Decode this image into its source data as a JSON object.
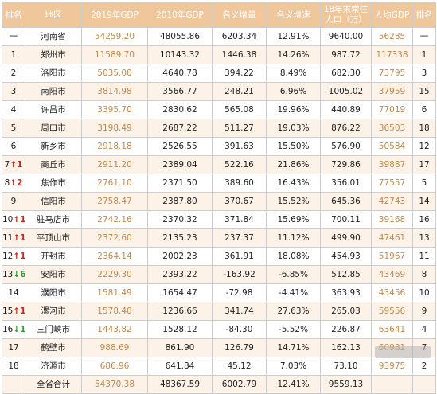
{
  "headers": {
    "rank": "排名",
    "region": "地区",
    "gdp2019": "2019年GDP",
    "gdp2018": "2018年GDP",
    "nominal_increase": "名义增量",
    "nominal_rate": "名义增速",
    "population": "18年末常住人口（万）",
    "per_capita": "人均GDP",
    "per_capita_rank": "排名"
  },
  "rows": [
    {
      "rank": "一",
      "change": "",
      "dir": "",
      "city": "河南省",
      "gdp2019": "54259.20",
      "gdp2018": "48055.86",
      "increase": "6203.34",
      "rate": "12.91%",
      "population": "9640.00",
      "per_capita": "56285",
      "pc_rank": "一"
    },
    {
      "rank": "1",
      "change": "",
      "dir": "",
      "city": "郑州市",
      "gdp2019": "11589.70",
      "gdp2018": "10143.32",
      "increase": "1446.38",
      "rate": "14.26%",
      "population": "987.72",
      "per_capita": "117338",
      "pc_rank": "1"
    },
    {
      "rank": "2",
      "change": "",
      "dir": "",
      "city": "洛阳市",
      "gdp2019": "5035.00",
      "gdp2018": "4640.78",
      "increase": "394.22",
      "rate": "8.49%",
      "population": "682.30",
      "per_capita": "73795",
      "pc_rank": "3"
    },
    {
      "rank": "3",
      "change": "",
      "dir": "",
      "city": "南阳市",
      "gdp2019": "3814.98",
      "gdp2018": "3566.77",
      "increase": "248.21",
      "rate": "6.96%",
      "population": "1005.02",
      "per_capita": "37959",
      "pc_rank": "15"
    },
    {
      "rank": "4",
      "change": "",
      "dir": "",
      "city": "许昌市",
      "gdp2019": "3395.70",
      "gdp2018": "2830.62",
      "increase": "565.08",
      "rate": "19.96%",
      "population": "440.89",
      "per_capita": "77019",
      "pc_rank": "6"
    },
    {
      "rank": "5",
      "change": "",
      "dir": "",
      "city": "周口市",
      "gdp2019": "3198.49",
      "gdp2018": "2687.22",
      "increase": "511.27",
      "rate": "19.03%",
      "population": "876.22",
      "per_capita": "36503",
      "pc_rank": "18"
    },
    {
      "rank": "6",
      "change": "",
      "dir": "",
      "city": "新乡市",
      "gdp2019": "2918.18",
      "gdp2018": "2526.55",
      "increase": "391.63",
      "rate": "15.50%",
      "population": "576.90",
      "per_capita": "50584",
      "pc_rank": "12"
    },
    {
      "rank": "7",
      "change": "1",
      "dir": "up",
      "city": "商丘市",
      "gdp2019": "2911.20",
      "gdp2018": "2389.04",
      "increase": "522.16",
      "rate": "21.86%",
      "population": "729.86",
      "per_capita": "39887",
      "pc_rank": "17"
    },
    {
      "rank": "8",
      "change": "2",
      "dir": "up",
      "city": "焦作市",
      "gdp2019": "2761.10",
      "gdp2018": "2371.50",
      "increase": "389.60",
      "rate": "16.43%",
      "population": "356.01",
      "per_capita": "77557",
      "pc_rank": "5"
    },
    {
      "rank": "9",
      "change": "",
      "dir": "",
      "city": "信阳市",
      "gdp2019": "2758.47",
      "gdp2018": "2387.80",
      "increase": "370.67",
      "rate": "15.52%",
      "population": "645.36",
      "per_capita": "42743",
      "pc_rank": "14"
    },
    {
      "rank": "10",
      "change": "1",
      "dir": "up",
      "city": "驻马店市",
      "gdp2019": "2742.16",
      "gdp2018": "2370.32",
      "increase": "371.84",
      "rate": "15.69%",
      "population": "700.11",
      "per_capita": "39168",
      "pc_rank": "16"
    },
    {
      "rank": "11",
      "change": "1",
      "dir": "up",
      "city": "平顶山市",
      "gdp2019": "2372.60",
      "gdp2018": "2135.23",
      "increase": "237.37",
      "rate": "11.12%",
      "population": "499.90",
      "per_capita": "47461",
      "pc_rank": "13"
    },
    {
      "rank": "12",
      "change": "1",
      "dir": "up",
      "city": "开封市",
      "gdp2019": "2364.14",
      "gdp2018": "2002.23",
      "increase": "361.91",
      "rate": "18.08%",
      "population": "454.93",
      "per_capita": "51967",
      "pc_rank": "11"
    },
    {
      "rank": "13",
      "change": "6",
      "dir": "down",
      "city": "安阳市",
      "gdp2019": "2229.30",
      "gdp2018": "2393.22",
      "increase": "-163.92",
      "rate": "-6.85%",
      "population": "512.85",
      "per_capita": "43469",
      "pc_rank": "8"
    },
    {
      "rank": "14",
      "change": "",
      "dir": "",
      "city": "濮阳市",
      "gdp2019": "1581.49",
      "gdp2018": "1654.47",
      "increase": "-72.98",
      "rate": "-4.41%",
      "population": "363.93",
      "per_capita": "43456",
      "pc_rank": "10"
    },
    {
      "rank": "15",
      "change": "1",
      "dir": "up",
      "city": "漯河市",
      "gdp2019": "1578.40",
      "gdp2018": "1236.66",
      "increase": "341.74",
      "rate": "27.63%",
      "population": "265.03",
      "per_capita": "59556",
      "pc_rank": "9"
    },
    {
      "rank": "16",
      "change": "1",
      "dir": "down",
      "city": "三门峡市",
      "gdp2019": "1443.82",
      "gdp2018": "1528.12",
      "increase": "-84.30",
      "rate": "-5.52%",
      "population": "226.87",
      "per_capita": "63641",
      "pc_rank": "4"
    },
    {
      "rank": "17",
      "change": "",
      "dir": "",
      "city": "鹤壁市",
      "gdp2019": "988.69",
      "gdp2018": "861.90",
      "increase": "126.79",
      "rate": "14.71%",
      "population": "162.13",
      "per_capita": "60981",
      "pc_rank": "7"
    },
    {
      "rank": "18",
      "change": "",
      "dir": "",
      "city": "济源市",
      "gdp2019": "686.96",
      "gdp2018": "641.84",
      "increase": "45.12",
      "rate": "7.03%",
      "population": "73.10",
      "per_capita": "93975",
      "pc_rank": "2"
    },
    {
      "rank": "",
      "change": "",
      "dir": "",
      "city": "全省合计",
      "gdp2019": "54370.38",
      "gdp2018": "48367.59",
      "increase": "6002.79",
      "rate": "12.41%",
      "population": "9559.13",
      "per_capita": "",
      "pc_rank": ""
    }
  ],
  "colors": {
    "header_bg": "#f0c79b",
    "stripe_bg": "#fdf2e7",
    "accent_text": "#c08a4a",
    "arrow_up": "#d0271d",
    "arrow_down": "#2f9e3a"
  }
}
